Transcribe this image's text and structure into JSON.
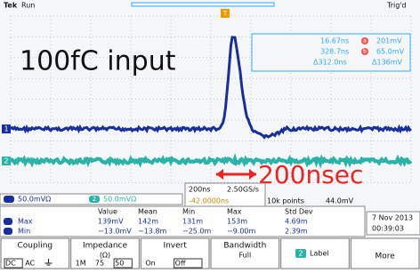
{
  "header": {
    "brand": "Tek",
    "state": "Run",
    "trigger": "Trig'd"
  },
  "annotations": {
    "title": "100fC input",
    "span": "200nsec"
  },
  "cursors": {
    "a_marker": "a",
    "b_marker": "b",
    "a_time": "16.67ns",
    "a_level": "201mV",
    "b_time": "328.7ns",
    "b_level": "65.0mV",
    "delta_time": "Δ312.0ns",
    "delta_level": "Δ136mV"
  },
  "channels": {
    "ch1": "1",
    "ch2": "2",
    "ch1_scale": "50.0mVΩ",
    "ch2_scale": "50.0mVΩ",
    "trigger_marker": "T"
  },
  "timebase": {
    "scale": "200ns",
    "rate": "2.50GS/s",
    "position": "-42.0000ns",
    "points": "10k points",
    "trigger_level": "44.0mV"
  },
  "measurements": {
    "headers": [
      "Value",
      "Mean",
      "Min",
      "Max",
      "Std Dev"
    ],
    "rows": [
      {
        "label": "Max",
        "cells": [
          "139mV",
          "142m",
          "131m",
          "153m",
          "4.69m"
        ]
      },
      {
        "label": "Min",
        "cells": [
          "−13.0mV",
          "−13.8m",
          "−25.0m",
          "−9.00m",
          "2.39m"
        ]
      }
    ]
  },
  "clock": {
    "date": "7 Nov 2013",
    "time": "00:39:03"
  },
  "menu": [
    {
      "label": "Coupling",
      "options": [
        "DC",
        "AC"
      ]
    },
    {
      "label": "Impedance",
      "sub": "(Ω)",
      "options": [
        "1M",
        "75",
        "50"
      ]
    },
    {
      "label": "Invert",
      "options": [
        "On",
        "Off"
      ]
    },
    {
      "label": "Bandwidth",
      "sub": "Full"
    },
    {
      "label": "Label",
      "icon": "2"
    },
    {
      "label": "More"
    }
  ]
}
